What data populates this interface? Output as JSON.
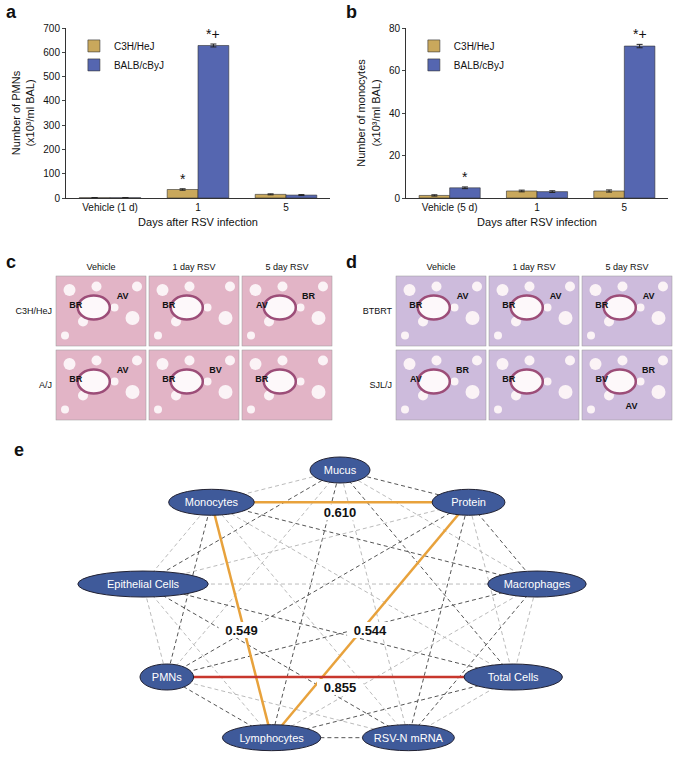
{
  "chart_data": [
    {
      "panel_label": "a",
      "type": "bar",
      "categories": [
        "Vehicle (1 d)",
        "1",
        "5"
      ],
      "x_title": "Days after RSV infection",
      "y_title": "Number of PMNs (x10³/ml BAL)",
      "ylim": [
        0,
        700
      ],
      "yticks": [
        0,
        100,
        200,
        300,
        400,
        500,
        600,
        700
      ],
      "grid": false,
      "legend": "top-left",
      "series": [
        {
          "name": "C3H/HeJ",
          "color": "#c9a85c",
          "values": [
            1,
            35,
            15
          ],
          "errors": [
            0.5,
            3,
            2
          ]
        },
        {
          "name": "BALB/cByJ",
          "color": "#5566b0",
          "values": [
            1,
            628,
            12
          ],
          "errors": [
            0.5,
            6,
            2
          ]
        }
      ],
      "annotations": [
        {
          "text": "*",
          "category": "1",
          "series": "C3H/HeJ"
        },
        {
          "text": "*+",
          "category": "1",
          "series": "BALB/cByJ"
        }
      ]
    },
    {
      "panel_label": "b",
      "type": "bar",
      "categories": [
        "Vehicle (5 d)",
        "1",
        "5"
      ],
      "x_title": "Days after RSV infection",
      "y_title": "Number of monocytes (x10³/ml BAL)",
      "ylim": [
        0,
        80
      ],
      "yticks": [
        0,
        20,
        40,
        60,
        80
      ],
      "grid": false,
      "legend": "top-left",
      "series": [
        {
          "name": "C3H/HeJ",
          "color": "#c9a85c",
          "values": [
            1.2,
            3.3,
            3.3
          ],
          "errors": [
            0.3,
            0.4,
            0.5
          ]
        },
        {
          "name": "BALB/cByJ",
          "color": "#5566b0",
          "values": [
            4.8,
            3.0,
            71.5
          ],
          "errors": [
            0.4,
            0.4,
            0.8
          ]
        }
      ],
      "annotations": [
        {
          "text": "*",
          "category": "Vehicle (5 d)",
          "series": "BALB/cByJ"
        },
        {
          "text": "*+",
          "category": "5",
          "series": "BALB/cByJ"
        }
      ]
    }
  ],
  "histology": [
    {
      "panel_label": "c",
      "color": "#e2b4c6",
      "columns": [
        "Vehicle",
        "1 day RSV",
        "5 day RSV"
      ],
      "rows": [
        {
          "label": "C3H/HeJ",
          "cells": [
            [
              "BR",
              "AV"
            ],
            [
              "BR"
            ],
            [
              "AV",
              "BR"
            ]
          ]
        },
        {
          "label": "A/J",
          "cells": [
            [
              "BR",
              "AV"
            ],
            [
              "BR",
              "BV"
            ],
            [
              "BR"
            ]
          ]
        }
      ]
    },
    {
      "panel_label": "d",
      "color": "#cdbbdc",
      "columns": [
        "Vehicle",
        "1 day RSV",
        "5 day RSV"
      ],
      "rows": [
        {
          "label": "BTBRT",
          "cells": [
            [
              "BR",
              "AV"
            ],
            [
              "BR",
              "AV"
            ],
            [
              "BR",
              "AV"
            ]
          ]
        },
        {
          "label": "SJL/J",
          "cells": [
            [
              "AV",
              "BR"
            ],
            [
              "BR"
            ],
            [
              "BV",
              "BR",
              "AV"
            ]
          ]
        }
      ]
    }
  ],
  "network": {
    "panel_label": "e",
    "nodes": [
      "Mucus",
      "Protein",
      "Macrophages",
      "Total Cells",
      "RSV-N mRNA",
      "Lymphocytes",
      "PMNs",
      "Epithelial Cells",
      "Monocytes"
    ],
    "node_color": "#3f5a9a",
    "edges": [
      {
        "source": "Monocytes",
        "target": "Protein",
        "value": 0.61,
        "value_label": "0.610",
        "color": "#e8a23c"
      },
      {
        "source": "Monocytes",
        "target": "Lymphocytes",
        "value": 0.549,
        "value_label": "0.549",
        "color": "#e8a23c"
      },
      {
        "source": "Lymphocytes",
        "target": "Protein",
        "value": 0.544,
        "value_label": "0.544",
        "color": "#e8a23c"
      },
      {
        "source": "PMNs",
        "target": "Total Cells",
        "value": 0.855,
        "value_label": "0.855",
        "color": "#c8372d"
      }
    ]
  }
}
